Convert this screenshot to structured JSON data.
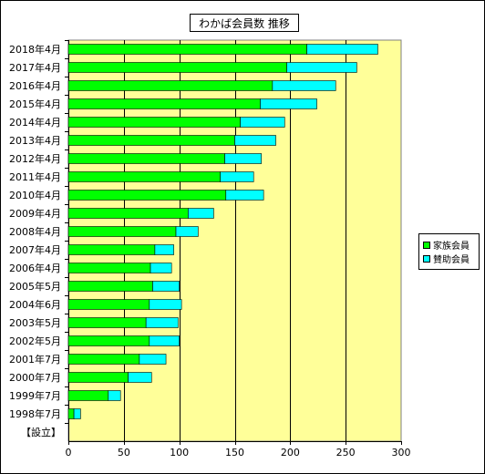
{
  "chart_data": {
    "type": "bar",
    "orientation": "horizontal",
    "stacked": true,
    "title": "わかば会員数  推移",
    "categories": [
      "2018年4月",
      "2017年4月",
      "2016年4月",
      "2015年4月",
      "2014年4月",
      "2013年4月",
      "2012年4月",
      "2011年4月",
      "2010年4月",
      "2009年4月",
      "2008年4月",
      "2007年4月",
      "2006年4月",
      "2005年5月",
      "2004年6月",
      "2003年5月",
      "2002年5月",
      "2001年7月",
      "2000年7月",
      "1999年7月",
      "1998年7月",
      "【設立】"
    ],
    "series": [
      {
        "name": "家族会員",
        "color": "#00ff00",
        "values": [
          215,
          197,
          184,
          173,
          155,
          150,
          141,
          137,
          142,
          108,
          97,
          78,
          74,
          76,
          73,
          70,
          73,
          64,
          54,
          36,
          5,
          0
        ]
      },
      {
        "name": "賛助会員",
        "color": "#00ffff",
        "values": [
          64,
          63,
          57,
          51,
          40,
          37,
          33,
          30,
          34,
          23,
          20,
          17,
          19,
          24,
          29,
          29,
          27,
          24,
          21,
          11,
          6,
          0
        ]
      }
    ],
    "xlim": [
      0,
      300
    ],
    "xticks": [
      0,
      50,
      100,
      150,
      200,
      250,
      300
    ],
    "xlabel": "",
    "ylabel": "",
    "grid": "vertical",
    "plot_background": "#ffff99",
    "legend_position": "right"
  }
}
